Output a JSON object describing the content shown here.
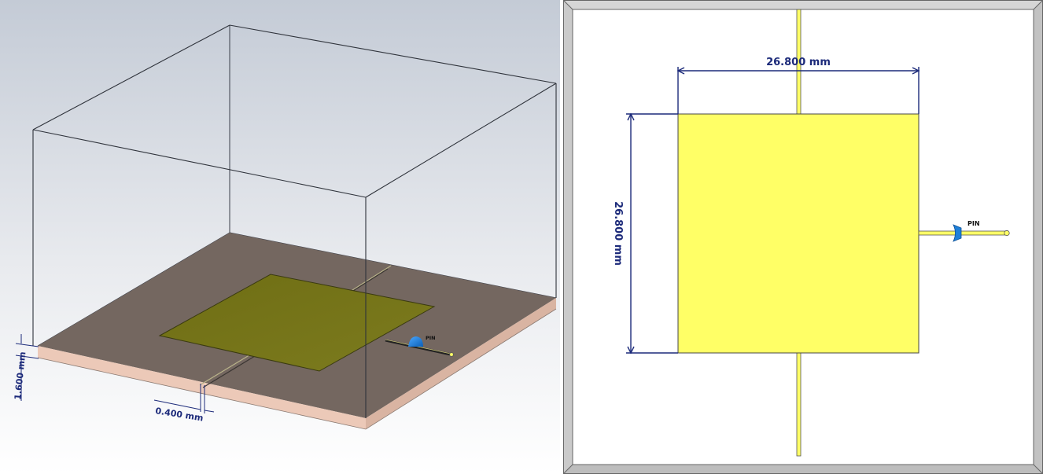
{
  "perspective_view": {
    "port_label": "PIN",
    "dimensions": {
      "substrate_thickness": "1.600 mm",
      "slot_width": "0.400 mm"
    }
  },
  "top_view": {
    "port_label": "PIN",
    "dimensions": {
      "patch_width": "26.800 mm",
      "patch_length": "26.800 mm"
    }
  },
  "colors": {
    "background_top": "#c4cbd6",
    "background_bottom": "#ffffff",
    "substrate_top": "#746760",
    "substrate_side": "#ecc9b8",
    "patch_3d": "#767519",
    "patch_top_view": "#ffff66",
    "dimension_lines": "#1c2a7a",
    "port": "#1e7fd8"
  }
}
